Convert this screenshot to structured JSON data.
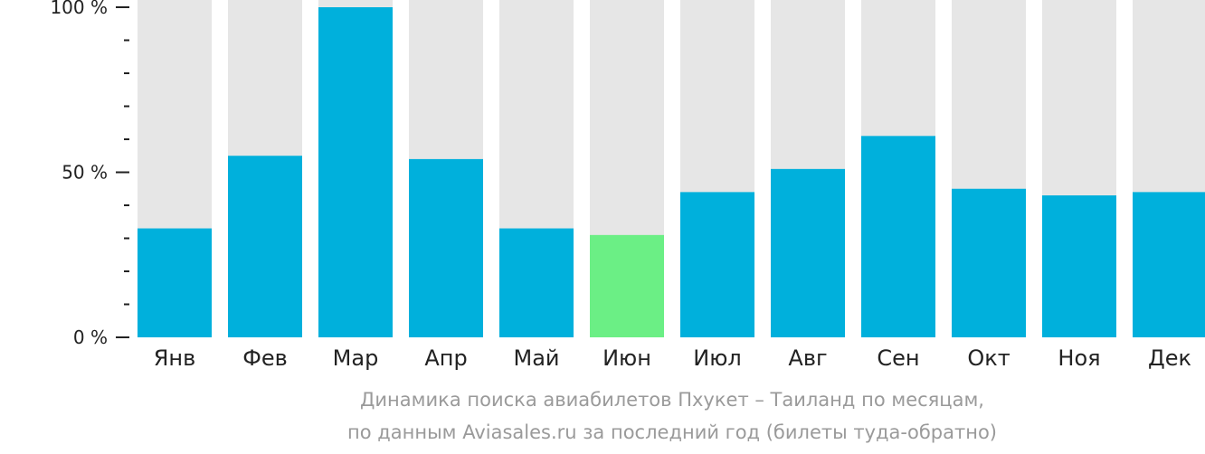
{
  "chart_data": {
    "type": "bar",
    "categories": [
      "Янв",
      "Фев",
      "Мар",
      "Апр",
      "Май",
      "Июн",
      "Июл",
      "Авг",
      "Сен",
      "Окт",
      "Ноя",
      "Дек"
    ],
    "values": [
      33,
      55,
      100,
      54,
      33,
      31,
      44,
      51,
      61,
      45,
      43,
      44
    ],
    "highlight_index": 5,
    "ylim": [
      0,
      100
    ],
    "yticks": [
      {
        "value": 100,
        "label": "100 %"
      },
      {
        "value": 50,
        "label": "50 %"
      },
      {
        "value": 0,
        "label": "0 %"
      }
    ],
    "minor_ticks_between_labels": 4,
    "caption_line1": "Динамика поиска авиабилетов Пхукет – Таиланд по месяцам,",
    "caption_line2": "по данным Aviasales.ru за последний год (билеты туда-обратно)"
  },
  "colors": {
    "bar": "#00b0dc",
    "highlight": "#6bef85",
    "track": "#e6e6e6",
    "axis": "#222222",
    "caption": "#9a9a9a"
  }
}
